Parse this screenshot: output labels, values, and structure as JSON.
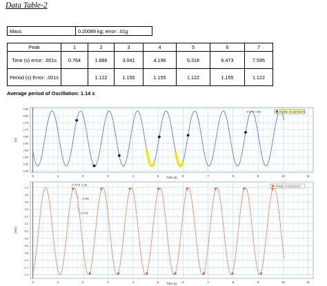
{
  "document": {
    "title": "Data Table-2",
    "mass_label": "Mass",
    "mass_value": "0.20089 kg; error: .01g",
    "table": {
      "header": [
        "Peak",
        "1",
        "2",
        "3",
        "4",
        "5",
        "6",
        "7"
      ],
      "rows": [
        [
          "Time (s) error: .001s",
          "0.764",
          "1.886",
          "3.041",
          "4.196",
          "5.318",
          "6.473",
          "7.595"
        ],
        [
          "Period (s) Error: .001s",
          "",
          "1.122",
          "1.155",
          "1.155",
          "1.122",
          "1.155",
          "1.122"
        ]
      ]
    },
    "average_period": "Average period of Oscillation: 1.14 s"
  },
  "chart_data": [
    {
      "type": "line",
      "title": "",
      "xlabel": "Time (s)",
      "ylabel": "(m)",
      "xlim": [
        -0.1,
        11.2
      ],
      "ylim": [
        0.39,
        0.86
      ],
      "yticks": [
        "0.85",
        "0.80",
        "0.75",
        "0.70",
        "0.65",
        "0.60",
        "0.55",
        "0.50",
        "0.45",
        "0.40"
      ],
      "xticks": [
        "0",
        "1",
        "2",
        "3",
        "4",
        "5",
        "6",
        "7",
        "8",
        "9",
        "10",
        "11"
      ],
      "series": [
        {
          "name": "Position, Ch 1&2 Run #1",
          "color": "#3344cc"
        }
      ],
      "sine": {
        "center": 0.635,
        "amplitude": 0.2,
        "period": 1.14,
        "first_peak": 0.764
      },
      "marker_times": [
        1.75,
        2.45,
        3.45,
        5.05,
        6.2,
        8.5
      ],
      "highlight_intervals": [
        [
          4.55,
          4.85
        ],
        [
          5.7,
          6.0
        ]
      ],
      "annotation": "(4.7176, 0.85)",
      "legend_location": "top-right"
    },
    {
      "type": "line",
      "title": "",
      "xlabel": "Time (s)",
      "ylabel": "(m/s)",
      "xlim": [
        -0.1,
        11.2
      ],
      "ylim": [
        -1.5,
        1.15
      ],
      "yticks": [
        "1.0",
        "0.8",
        "0.6",
        "0.4",
        "0.2",
        "0.0",
        "-0.2",
        "-0.4",
        "-0.6",
        "-0.8",
        "-1.0",
        "-1.2",
        "-1.4"
      ],
      "xticks": [
        "0",
        "1",
        "2",
        "3",
        "4",
        "5",
        "6",
        "7",
        "8",
        "9",
        "10",
        "11"
      ],
      "series": [
        {
          "name": "Velocity, Ch 1&2 Run #1",
          "color": "#e8622a"
        }
      ],
      "sine": {
        "center": -0.2,
        "amplitude": 1.2,
        "period": 1.14,
        "first_peak": 1.65
      },
      "annotations": [
        "(1.5228, 1.18)",
        "-0.966",
        "0.2738"
      ],
      "legend_location": "top-right"
    }
  ]
}
